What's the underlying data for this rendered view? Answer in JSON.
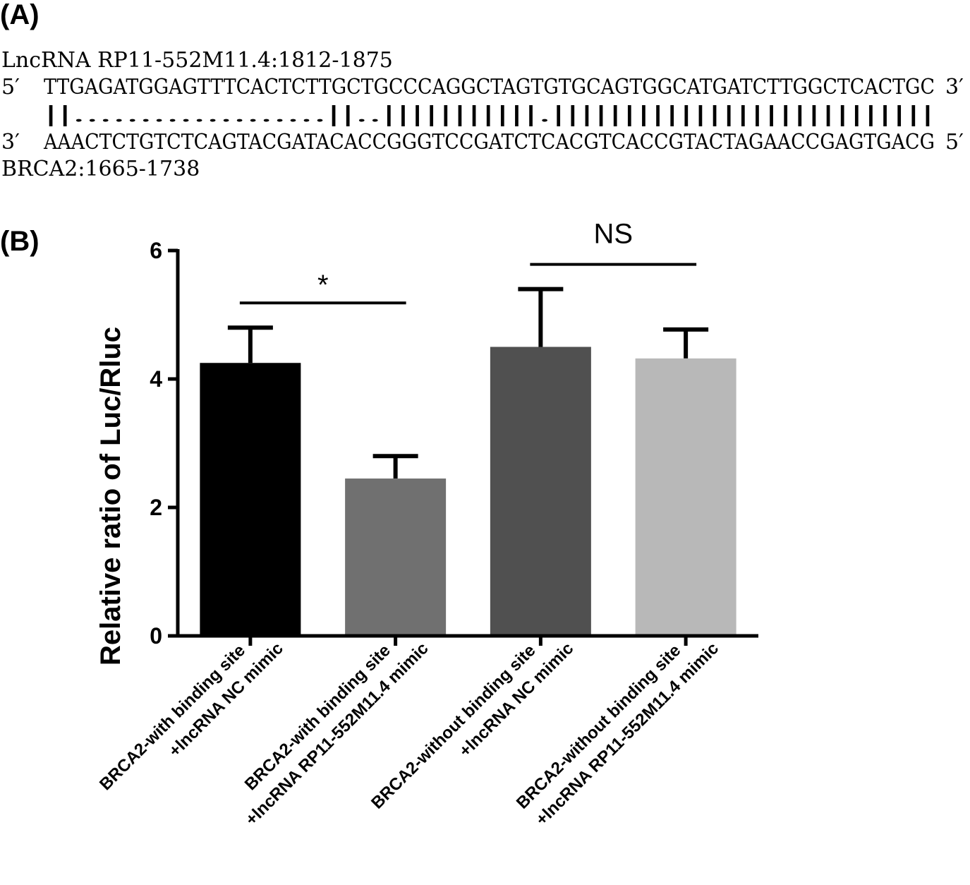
{
  "panels": {
    "a_label": "(A)",
    "b_label": "(B)"
  },
  "sequence": {
    "lnc_header": "LncRNA RP11-552M11.4:1812-1875",
    "top_prime_left": "5′",
    "top_seq": "TTGAGATGGAGTTTCACTCTTGCTGCCCAGGCTAGTGTGCAGTGGCATGATCTTGGCTCACTGC",
    "top_prime_right": "3′",
    "pairing": "||...................||..|||||||||||.|||||||||||||||||||||||||||",
    "bottom_prime_left": "3′",
    "bottom_seq": "AAACTCTGTCTCAGTACGATACACCGGGTCCGATCTCACGTCACCGTACTAGAACCGAGTGACG",
    "bottom_prime_right": "5′",
    "brca_footer": "BRCA2:1665-1738"
  },
  "chart_data": {
    "type": "bar",
    "categories": [
      [
        "BRCA2-with binding site",
        "+lncRNA NC mimic"
      ],
      [
        "BRCA2-with binding site",
        "+lncRNA RP11-552M11.4 mimic"
      ],
      [
        "BRCA2-without binding site",
        "+lncRNA NC mimic"
      ],
      [
        "BRCA2-without binding site",
        "+lncRNA RP11-552M11.4 mimic"
      ]
    ],
    "values": [
      4.25,
      2.45,
      4.5,
      4.32
    ],
    "errors": [
      0.55,
      0.35,
      0.9,
      0.45
    ],
    "colors": [
      "#000000",
      "#707070",
      "#505050",
      "#b8b8b8"
    ],
    "ylabel": "Relative ratio of Luc/Rluc",
    "xlabel": "",
    "ylim": [
      0,
      6
    ],
    "yticks": [
      0,
      2,
      4,
      6
    ],
    "significance": [
      {
        "pair": [
          0,
          1
        ],
        "label": "*"
      },
      {
        "pair": [
          2,
          3
        ],
        "label": "NS"
      }
    ],
    "grid": false,
    "legend": "none"
  }
}
